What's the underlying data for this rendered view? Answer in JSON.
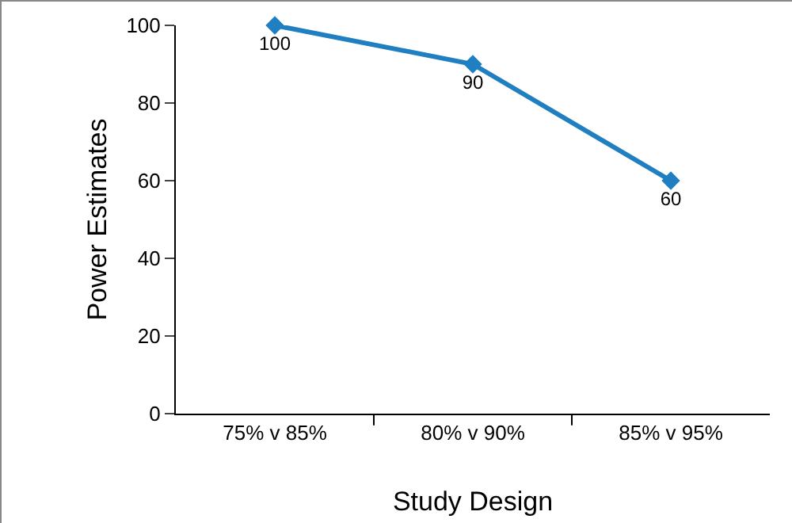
{
  "chart_data": {
    "type": "line",
    "xlabel": "Study Design",
    "ylabel": "Power Estimates",
    "categories": [
      "75% v 85%",
      "80% v 90%",
      "85% v 95%"
    ],
    "series": [
      {
        "color": "#1f7fc1",
        "values": [
          100,
          90,
          60
        ]
      }
    ],
    "ylim": [
      0,
      100
    ],
    "yticks": [
      0,
      20,
      40,
      60,
      80,
      100
    ],
    "grid": false,
    "marker": "diamond",
    "line_style": "solid",
    "data_labels": true
  }
}
